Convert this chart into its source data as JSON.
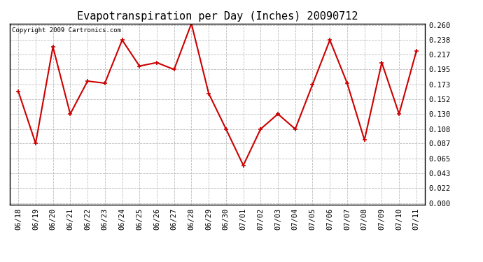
{
  "title": "Evapotranspiration per Day (Inches) 20090712",
  "copyright_text": "Copyright 2009 Cartronics.com",
  "x_labels": [
    "06/18",
    "06/19",
    "06/20",
    "06/21",
    "06/22",
    "06/23",
    "06/24",
    "06/25",
    "06/26",
    "06/27",
    "06/28",
    "06/29",
    "06/30",
    "07/01",
    "07/02",
    "07/03",
    "07/04",
    "07/05",
    "07/06",
    "07/07",
    "07/08",
    "07/09",
    "07/10",
    "07/11"
  ],
  "y_values": [
    0.163,
    0.087,
    0.228,
    0.13,
    0.178,
    0.175,
    0.238,
    0.2,
    0.205,
    0.195,
    0.262,
    0.16,
    0.108,
    0.055,
    0.108,
    0.13,
    0.108,
    0.173,
    0.238,
    0.175,
    0.092,
    0.205,
    0.13,
    0.222
  ],
  "y_ticks": [
    0.0,
    0.022,
    0.043,
    0.065,
    0.087,
    0.108,
    0.13,
    0.152,
    0.173,
    0.195,
    0.217,
    0.238,
    0.26
  ],
  "line_color": "#cc0000",
  "marker": "+",
  "marker_size": 5,
  "marker_edge_width": 1.2,
  "line_width": 1.5,
  "background_color": "#ffffff",
  "grid_color": "#bbbbbb",
  "plot_bg_color": "#ffffff",
  "title_fontsize": 11,
  "copyright_fontsize": 6.5,
  "tick_label_fontsize": 7.5,
  "y_min": 0.0,
  "y_max": 0.26
}
